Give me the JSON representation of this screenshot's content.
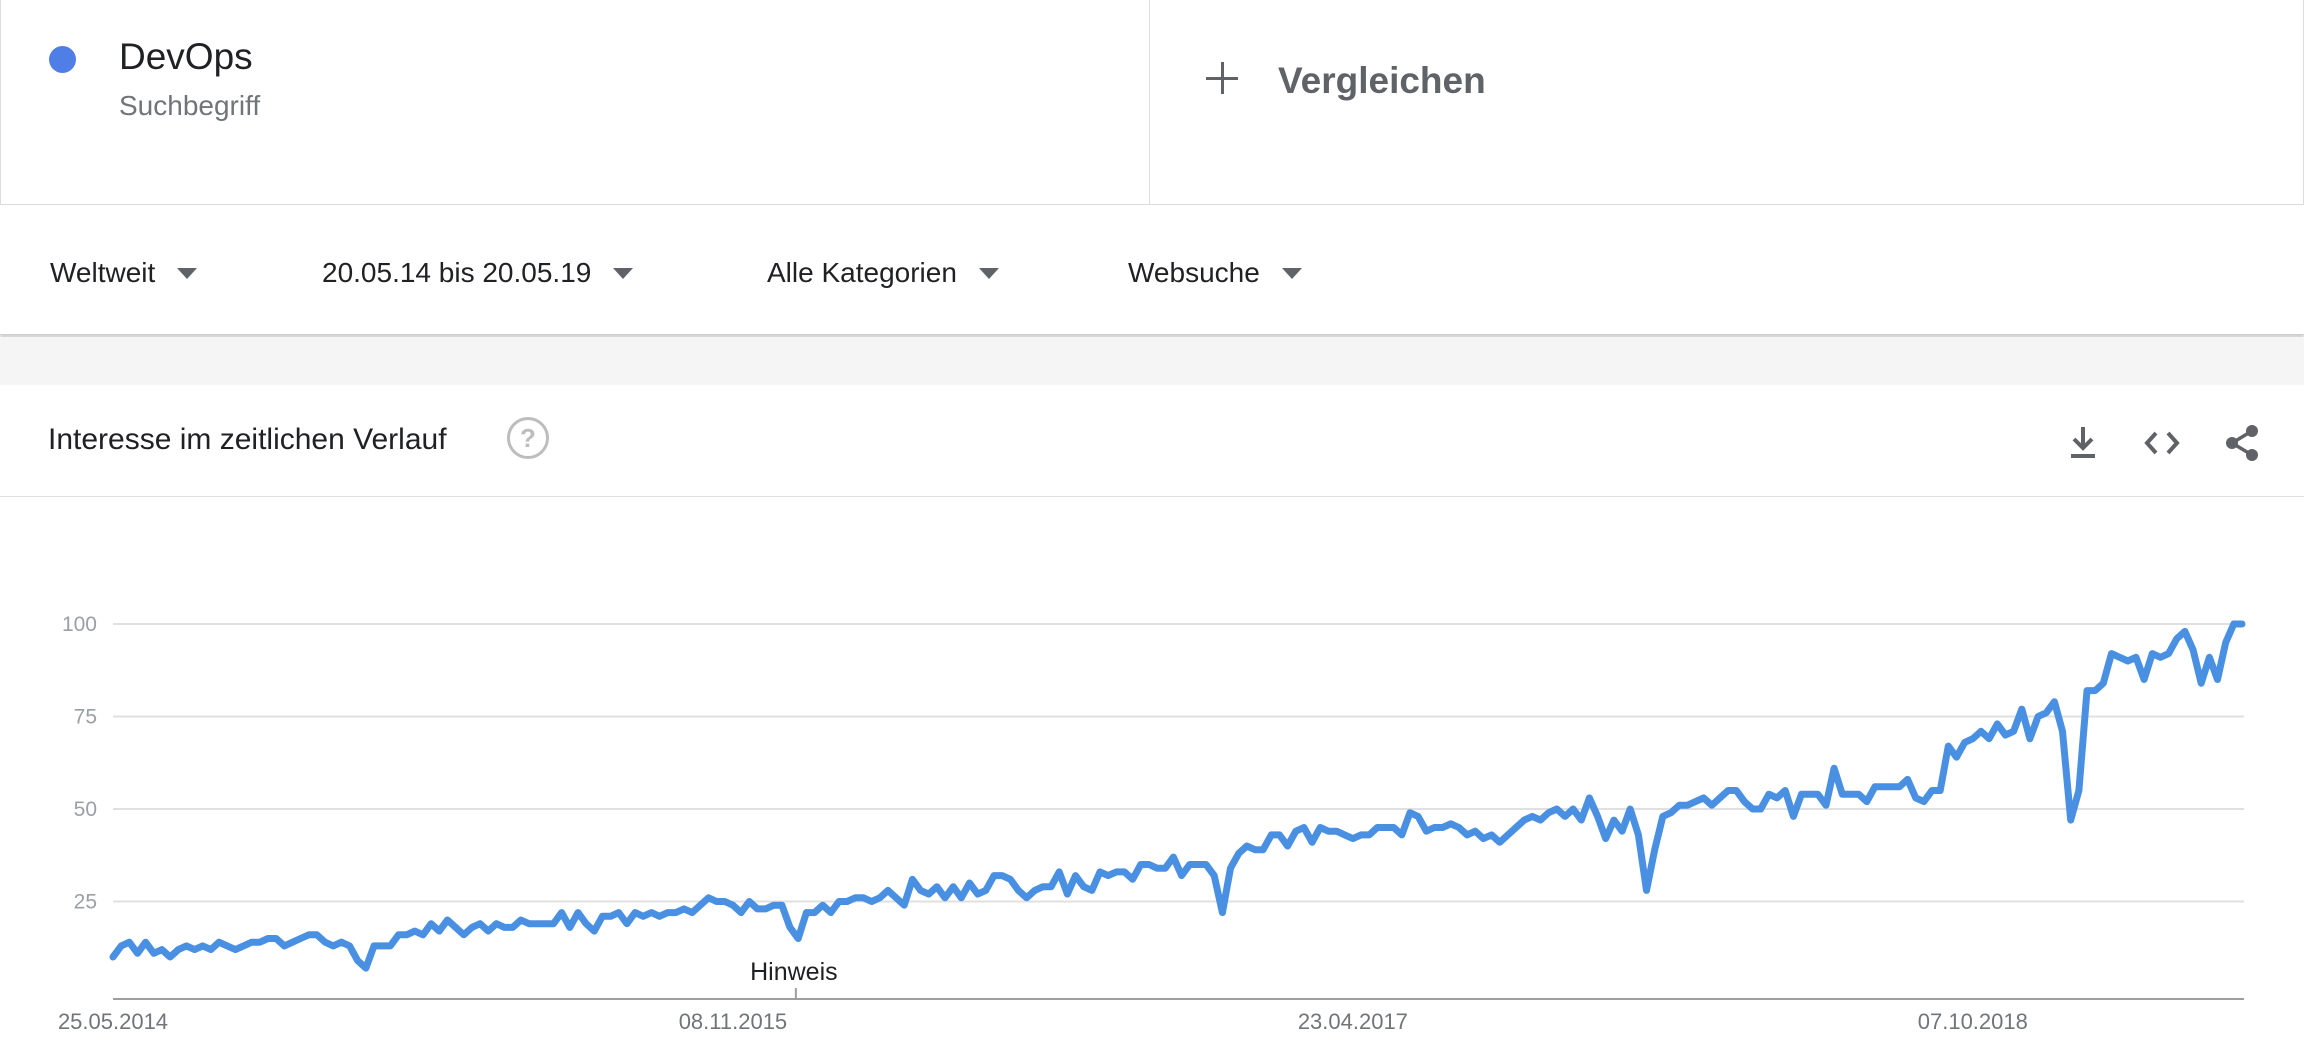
{
  "term": {
    "name": "DevOps",
    "type": "Suchbegriff",
    "color": "#4e7ee6"
  },
  "compare": {
    "label": "Vergleichen"
  },
  "filters": {
    "region": "Weltweit",
    "time_range": "20.05.14 bis 20.05.19",
    "category": "Alle Kategorien",
    "search_type": "Websuche"
  },
  "panel": {
    "title": "Interesse im zeitlichen Verlauf",
    "help_icon": "question-circle-icon",
    "actions": [
      "download-icon",
      "embed-code-icon",
      "share-icon"
    ]
  },
  "chart_data": {
    "type": "line",
    "line_color": "#4a90e2",
    "y_ticks": [
      25,
      50,
      75,
      100
    ],
    "ylim": [
      0,
      100
    ],
    "grid": true,
    "x_tick_labels": [
      "25.05.2014",
      "08.11.2015",
      "23.04.2017",
      "07.10.2018"
    ],
    "annotation": {
      "label": "Hinweis",
      "date": "01.01.2016"
    },
    "series": [
      {
        "x_start": "25.05.2014",
        "interval": "week",
        "values": [
          10,
          13,
          14,
          11,
          14,
          11,
          12,
          10,
          12,
          13,
          12,
          13,
          12,
          14,
          13,
          12,
          13,
          14,
          14,
          15,
          15,
          13,
          14,
          15,
          16,
          16,
          14,
          13,
          14,
          13,
          9,
          7,
          13,
          13,
          13,
          16,
          16,
          17,
          16,
          19,
          17,
          20,
          18,
          16,
          18,
          19,
          17,
          19,
          18,
          18,
          20,
          19,
          19,
          19,
          19,
          22,
          18,
          22,
          19,
          17,
          21,
          21,
          22,
          19,
          22,
          21,
          22,
          21,
          22,
          22,
          23,
          22,
          24,
          26,
          25,
          25,
          24,
          22,
          25,
          23,
          23,
          24,
          24,
          18,
          15,
          22,
          22,
          24,
          22,
          25,
          25,
          26,
          26,
          25,
          26,
          28,
          26,
          24,
          31,
          28,
          27,
          29,
          26,
          29,
          26,
          30,
          27,
          28,
          32,
          32,
          31,
          28,
          26,
          28,
          29,
          29,
          33,
          27,
          32,
          29,
          28,
          33,
          32,
          33,
          33,
          31,
          35,
          35,
          34,
          34,
          37,
          32,
          35,
          35,
          35,
          32,
          22,
          34,
          38,
          40,
          39,
          39,
          43,
          43,
          40,
          44,
          45,
          41,
          45,
          44,
          44,
          43,
          42,
          43,
          43,
          45,
          45,
          45,
          43,
          49,
          48,
          44,
          45,
          45,
          46,
          45,
          43,
          44,
          42,
          43,
          41,
          43,
          45,
          47,
          48,
          47,
          49,
          50,
          48,
          50,
          47,
          53,
          48,
          42,
          47,
          44,
          50,
          43,
          28,
          39,
          48,
          49,
          51,
          51,
          52,
          53,
          51,
          53,
          55,
          55,
          52,
          50,
          50,
          54,
          53,
          55,
          48,
          54,
          54,
          54,
          51,
          61,
          54,
          54,
          54,
          52,
          56,
          56,
          56,
          56,
          58,
          53,
          52,
          55,
          55,
          67,
          64,
          68,
          69,
          71,
          69,
          73,
          70,
          71,
          77,
          69,
          75,
          76,
          79,
          71,
          47,
          55,
          82,
          82,
          84,
          92,
          91,
          90,
          91,
          85,
          92,
          91,
          92,
          96,
          98,
          93,
          84,
          91,
          85,
          95,
          100,
          100
        ]
      }
    ]
  }
}
